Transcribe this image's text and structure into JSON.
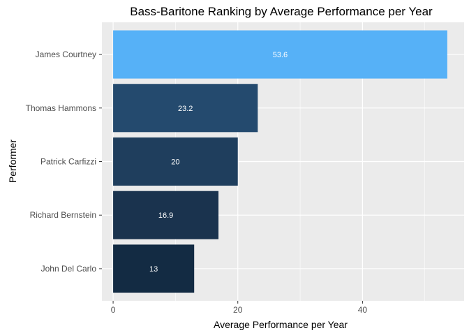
{
  "chart_data": {
    "type": "bar",
    "orientation": "horizontal",
    "title": "Bass-Baritone Ranking by Average Performance per Year",
    "xlabel": "Average Performance per Year",
    "ylabel": "Performer",
    "categories": [
      "James Courtney",
      "Thomas Hammons",
      "Patrick Carfizzi",
      "Richard Bernstein",
      "John Del Carlo"
    ],
    "values": [
      53.6,
      23.2,
      20,
      16.9,
      13
    ],
    "data_labels": [
      "53.6",
      "23.2",
      "20",
      "16.9",
      "13"
    ],
    "bar_colors": [
      "#56B1F7",
      "#244A6E",
      "#1F3E5D",
      "#1A334E",
      "#132B43"
    ],
    "xlim": [
      -1.8,
      56.3
    ],
    "x_ticks": [
      0,
      20,
      40
    ],
    "x_minor_ticks": [
      10,
      30,
      50
    ],
    "grid": true,
    "legend": "none",
    "colors": {
      "panel_background": "#EBEBEB",
      "grid_major": "#FFFFFF",
      "data_label_text": "#FFFFFF",
      "axis_text": "#4D4D4D",
      "title_text": "#000000"
    }
  }
}
